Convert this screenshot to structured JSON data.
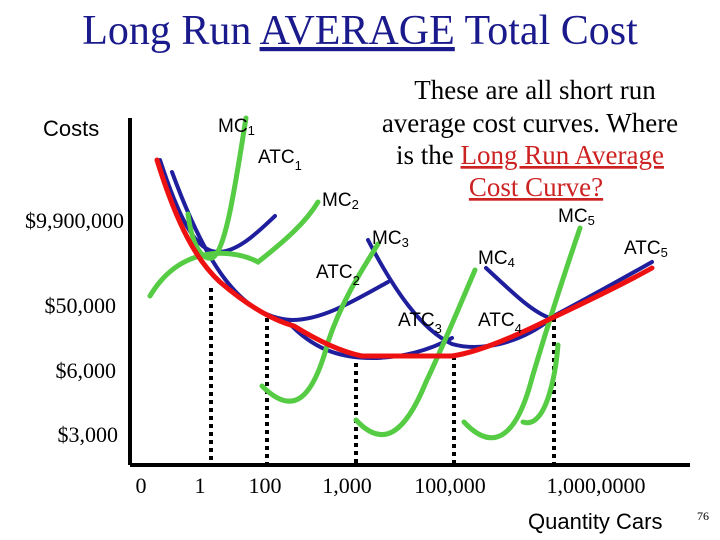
{
  "slide": {
    "title_prefix": "Long Run ",
    "title_emphasis": "AVERAGE",
    "title_suffix": " Total Cost",
    "page_number": "76"
  },
  "callout": {
    "line1": "These are all short run",
    "line2": "average cost curves. Where",
    "line3_prefix": "is the ",
    "line3_highlight": "Long Run Average",
    "line4_highlight": "Cost Curve?"
  },
  "axes": {
    "y_title": "Costs",
    "x_title": "Quantity Cars",
    "y_ticks": [
      "$9,900,000",
      "$50,000",
      "$6,000",
      "$3,000"
    ],
    "x_ticks": [
      "0",
      "1",
      "100",
      "1,000",
      "100,000",
      "1,000,0000"
    ]
  },
  "curve_labels": {
    "mc": [
      "MC",
      "MC",
      "MC",
      "MC",
      "MC"
    ],
    "mc_sub": [
      "1",
      "2",
      "3",
      "4",
      "5"
    ],
    "atc": [
      "ATC",
      "ATC",
      "ATC",
      "ATC",
      "ATC"
    ],
    "atc_sub": [
      "1",
      "2",
      "3",
      "4",
      "5"
    ]
  },
  "colors": {
    "title": "#1a1a8c",
    "highlight": "#cc2222",
    "atc_curves": "#1f1f9e",
    "mc_curves": "#55cc44",
    "lrac": "#ee1111",
    "axis": "#000000",
    "dotted": "#000000"
  }
}
